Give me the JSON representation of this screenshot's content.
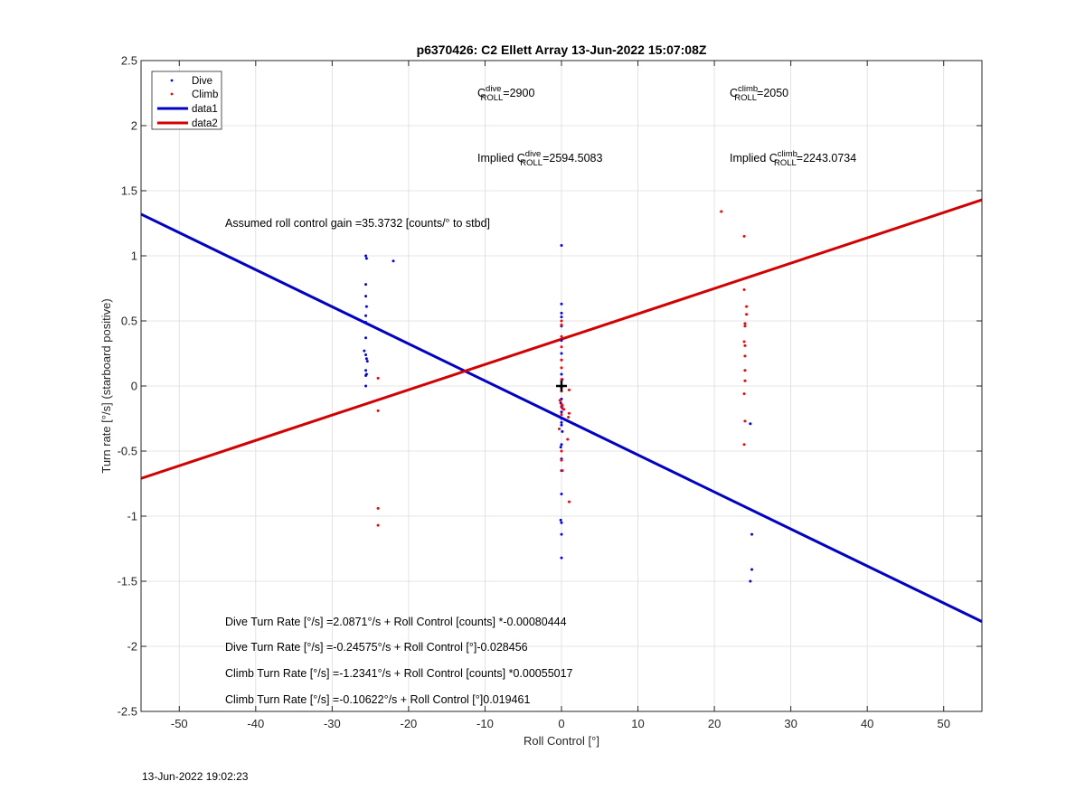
{
  "chart_data": {
    "type": "scatter",
    "title": "p6370426: C2 Ellett Array 13-Jun-2022 15:07:08Z",
    "xlabel": "Roll Control [°]",
    "ylabel": "Turn rate [°/s] (starboard positive)",
    "xlim": [
      -55,
      55
    ],
    "ylim": [
      -2.5,
      2.5
    ],
    "xticks": [
      -50,
      -40,
      -30,
      -20,
      -10,
      0,
      10,
      20,
      30,
      40,
      50
    ],
    "yticks": [
      -2.5,
      -2,
      -1.5,
      -1,
      -0.5,
      0,
      0.5,
      1,
      1.5,
      2,
      2.5
    ],
    "grid": true,
    "legend_position": "top-left",
    "series": [
      {
        "name": "Dive",
        "kind": "points",
        "color": "#0000ff",
        "points": [
          [
            -25.6,
            1.0
          ],
          [
            -25.5,
            0.98
          ],
          [
            -22,
            0.96
          ],
          [
            -25.6,
            0.78
          ],
          [
            -25.6,
            0.69
          ],
          [
            -25.5,
            0.61
          ],
          [
            -25.6,
            0.54
          ],
          [
            -25.6,
            0.49
          ],
          [
            -25.6,
            0.37
          ],
          [
            -25.8,
            0.27
          ],
          [
            -25.6,
            0.24
          ],
          [
            -25.5,
            0.21
          ],
          [
            -25.4,
            0.19
          ],
          [
            -25.6,
            0.12
          ],
          [
            -25.5,
            0.09
          ],
          [
            -25.6,
            0.08
          ],
          [
            -25.6,
            0.0
          ],
          [
            0,
            1.08
          ],
          [
            0,
            0.63
          ],
          [
            0,
            0.56
          ],
          [
            0,
            0.53
          ],
          [
            0,
            0.46
          ],
          [
            0,
            0.35
          ],
          [
            0,
            0.25
          ],
          [
            0,
            0.2
          ],
          [
            0,
            0.09
          ],
          [
            0.1,
            0.05
          ],
          [
            0,
            -0.01
          ],
          [
            0,
            -0.1
          ],
          [
            -0.1,
            -0.13
          ],
          [
            0,
            -0.16
          ],
          [
            0,
            -0.2
          ],
          [
            0,
            -0.25
          ],
          [
            0,
            -0.28
          ],
          [
            0,
            -0.3
          ],
          [
            0.1,
            -0.35
          ],
          [
            0,
            -0.45
          ],
          [
            -0.1,
            -0.47
          ],
          [
            0,
            -0.56
          ],
          [
            0,
            -0.65
          ],
          [
            0,
            -0.83
          ],
          [
            -0.1,
            -1.03
          ],
          [
            0,
            -1.05
          ],
          [
            0,
            -1.14
          ],
          [
            0,
            -1.32
          ],
          [
            24.7,
            -0.29
          ],
          [
            24.9,
            -1.14
          ],
          [
            24.9,
            -1.41
          ],
          [
            24.7,
            -1.5
          ]
        ]
      },
      {
        "name": "Climb",
        "kind": "points",
        "color": "#ff0000",
        "points": [
          [
            -24,
            0.06
          ],
          [
            -24,
            -0.19
          ],
          [
            -24,
            -0.94
          ],
          [
            -24,
            -1.07
          ],
          [
            0,
            0.5
          ],
          [
            0,
            0.47
          ],
          [
            0,
            0.38
          ],
          [
            0,
            0.3
          ],
          [
            0,
            0.2
          ],
          [
            0,
            0.14
          ],
          [
            0,
            0.05
          ],
          [
            0,
            -0.04
          ],
          [
            -0.2,
            -0.11
          ],
          [
            0,
            -0.14
          ],
          [
            0.1,
            -0.15
          ],
          [
            0.1,
            -0.17
          ],
          [
            0.3,
            -0.18
          ],
          [
            0,
            -0.22
          ],
          [
            -0.3,
            -0.33
          ],
          [
            0,
            -0.5
          ],
          [
            0,
            -0.57
          ],
          [
            0.1,
            -0.65
          ],
          [
            1.0,
            -0.03
          ],
          [
            1.0,
            -0.21
          ],
          [
            0.9,
            -0.24
          ],
          [
            0.8,
            -0.41
          ],
          [
            1.0,
            -0.89
          ],
          [
            20.9,
            1.34
          ],
          [
            23.9,
            1.15
          ],
          [
            23.9,
            0.74
          ],
          [
            24.2,
            0.61
          ],
          [
            24.2,
            0.55
          ],
          [
            24.0,
            0.48
          ],
          [
            24.0,
            0.46
          ],
          [
            23.9,
            0.34
          ],
          [
            24.0,
            0.31
          ],
          [
            24.0,
            0.23
          ],
          [
            24.0,
            0.12
          ],
          [
            24.0,
            0.04
          ],
          [
            23.9,
            -0.06
          ],
          [
            24.0,
            -0.27
          ],
          [
            23.9,
            -0.45
          ]
        ]
      },
      {
        "name": "data1",
        "kind": "line",
        "color": "#0000c8",
        "points": [
          [
            -55,
            1.32
          ],
          [
            55,
            -1.81
          ]
        ]
      },
      {
        "name": "data2",
        "kind": "line",
        "color": "#d40000",
        "points": [
          [
            -55,
            -0.71
          ],
          [
            55,
            1.43
          ]
        ]
      }
    ],
    "marker": {
      "x": 0,
      "y": 0,
      "color": "#000000"
    },
    "annotations": {
      "c_dive_base": "C",
      "c_dive_sup": "dive",
      "c_dive_sub": "ROLL",
      "c_dive_value": "=2900",
      "c_climb_base": "C",
      "c_climb_sup": "climb",
      "c_climb_sub": "ROLL",
      "c_climb_value": "=2050",
      "implied_dive_prefix": "Implied C",
      "implied_dive_sup": "dive",
      "implied_dive_sub": "ROLL",
      "implied_dive_value": "=2594.5083",
      "implied_climb_prefix": "Implied C",
      "implied_climb_sup": "climb",
      "implied_climb_sub": "ROLL",
      "implied_climb_value": "=2243.0734",
      "gain": "Assumed roll control gain =35.3732 [counts/° to stbd]",
      "eq1": "Dive Turn Rate [°/s] =2.0871°/s + Roll Control [counts] *-0.00080444",
      "eq2": "Dive Turn Rate [°/s] =-0.24575°/s + Roll Control [°]-0.028456",
      "eq3": "Climb Turn Rate [°/s] =-1.2341°/s + Roll Control [counts] *0.00055017",
      "eq4": "Climb Turn Rate [°/s] =-0.10622°/s + Roll Control [°]0.019461"
    }
  },
  "footer_timestamp": "13-Jun-2022 19:02:23"
}
